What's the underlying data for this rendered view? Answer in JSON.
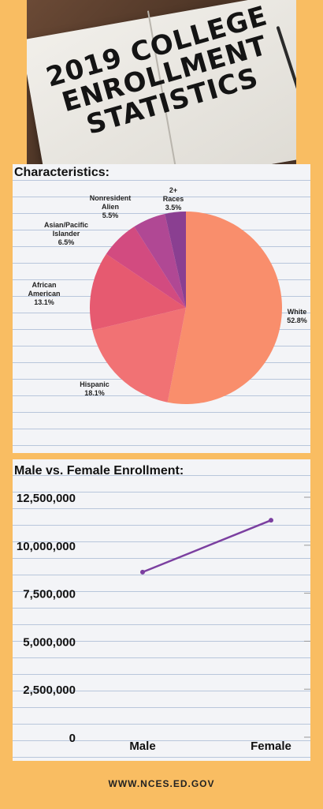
{
  "hero": {
    "title": "2019 COLLEGE ENROLLMENT STATISTICS"
  },
  "characteristics": {
    "heading": "Characteristics:",
    "chart_data": {
      "type": "pie",
      "title": "",
      "slices": [
        {
          "label": "White",
          "value": 52.8,
          "display": "52.8%",
          "color": "#f98e6c"
        },
        {
          "label": "Hispanic",
          "value": 18.1,
          "display": "18.1%",
          "color": "#f17274"
        },
        {
          "label": "African American",
          "value": 13.1,
          "display": "13.1%",
          "color": "#e65a70"
        },
        {
          "label": "Asian/Pacific Islander",
          "value": 6.5,
          "display": "6.5%",
          "color": "#d24b80"
        },
        {
          "label": "Nonresident Alien",
          "value": 5.5,
          "display": "5.5%",
          "color": "#b04894"
        },
        {
          "label": "2+ Races",
          "value": 3.5,
          "display": "3.5%",
          "color": "#8a3f91"
        }
      ]
    }
  },
  "enrollment": {
    "heading": "Male vs. Female Enrollment:",
    "chart_data": {
      "type": "line",
      "categories": [
        "Male",
        "Female"
      ],
      "series": [
        {
          "values": [
            8600000,
            11300000
          ],
          "color": "#7b3fa0"
        }
      ],
      "ylim": [
        0,
        12500000
      ],
      "yticks": [
        0,
        2500000,
        5000000,
        7500000,
        10000000,
        12500000
      ],
      "ytick_labels": [
        "0",
        "2,500,000",
        "5,000,000",
        "7,500,000",
        "10,000,000",
        "12,500,000"
      ],
      "grid": false
    }
  },
  "footer": {
    "url": "WWW.NCES.ED.GOV"
  }
}
